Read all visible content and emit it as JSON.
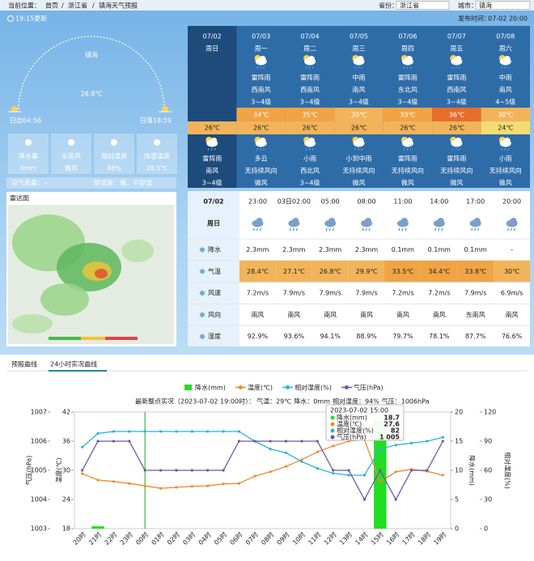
{
  "header": {
    "breadcrumb": [
      "当前位置：",
      "首页",
      "浙江省",
      "镇海天气预报"
    ],
    "province_label": "省份：",
    "province": "浙江省",
    "city_label": "城市：",
    "city": "镇海",
    "update_time": "19:15更新",
    "publish_label": "发布时间：",
    "publish_time": "07-02 20:00"
  },
  "current": {
    "city": "镇海",
    "temperature": "28.8℃",
    "sunrise": "日出04:56",
    "sunset": "日落18:59",
    "stats": [
      {
        "label": "降水量",
        "value": "0mm"
      },
      {
        "label": "东南风",
        "value": "微风"
      },
      {
        "label": "相对湿度",
        "value": "88%"
      },
      {
        "label": "体感温度",
        "value": "28.5℃"
      }
    ],
    "air_quality": "空气质量：-",
    "comfort": "舒适度：暖，不舒适"
  },
  "radar": {
    "title": "雷达图"
  },
  "forecast": {
    "days": [
      {
        "date": "07/02",
        "weekday": "周日",
        "low": "26℃",
        "night_weather": "雷阵雨",
        "night_wind_dir": "南风",
        "night_wind_level": "3~4级"
      },
      {
        "date": "07/03",
        "weekday": "周一",
        "day_weather": "雷阵雨",
        "day_wind_dir": "西南风",
        "day_wind_level": "3~4级",
        "high": "34℃",
        "low": "26℃",
        "night_weather": "多云",
        "night_wind_dir": "无持续风向",
        "night_wind_level": "微风"
      },
      {
        "date": "07/04",
        "weekday": "周二",
        "day_weather": "雷阵雨",
        "day_wind_dir": "西南风",
        "day_wind_level": "3~4级",
        "high": "35℃",
        "low": "26℃",
        "night_weather": "小雨",
        "night_wind_dir": "西北风",
        "night_wind_level": "3~4级"
      },
      {
        "date": "07/05",
        "weekday": "周三",
        "day_weather": "中雨",
        "day_wind_dir": "南风",
        "day_wind_level": "3~4级",
        "high": "30℃",
        "low": "26℃",
        "night_weather": "小到中雨",
        "night_wind_dir": "无持续风向",
        "night_wind_level": "微风"
      },
      {
        "date": "07/06",
        "weekday": "周四",
        "day_weather": "雷阵雨",
        "day_wind_dir": "东北风",
        "day_wind_level": "3~4级",
        "high": "33℃",
        "low": "26℃",
        "night_weather": "雷阵雨",
        "night_wind_dir": "无持续风向",
        "night_wind_level": "微风"
      },
      {
        "date": "07/07",
        "weekday": "周五",
        "day_weather": "雷阵雨",
        "day_wind_dir": "西南风",
        "day_wind_level": "3~4级",
        "high": "36℃",
        "low": "26℃",
        "night_weather": "雷阵雨",
        "night_wind_dir": "无持续风向",
        "night_wind_level": "微风"
      },
      {
        "date": "07/08",
        "weekday": "周六",
        "day_weather": "中雨",
        "day_wind_dir": "南风",
        "day_wind_level": "4~5级",
        "high": "30℃",
        "low": "24℃",
        "night_weather": "小雨",
        "night_wind_dir": "无持续风向",
        "night_wind_level": "微风"
      }
    ]
  },
  "hourly": {
    "date": "07/02",
    "weekday": "周日",
    "times": [
      "23:00",
      "03日02:00",
      "05:00",
      "08:00",
      "11:00",
      "14:00",
      "17:00",
      "20:00"
    ],
    "rows": [
      {
        "label": "降水",
        "values": [
          "2.3mm",
          "2.3mm",
          "2.3mm",
          "2.3mm",
          "0.1mm",
          "0.1mm",
          "0.1mm",
          "-"
        ]
      },
      {
        "label": "气温",
        "values": [
          "28.4℃",
          "27.1℃",
          "26.8℃",
          "29.9℃",
          "33.5℃",
          "34.4℃",
          "33.8℃",
          "30℃"
        ]
      },
      {
        "label": "风速",
        "values": [
          "7.2m/s",
          "7.9m/s",
          "7.9m/s",
          "7.9m/s",
          "7.2m/s",
          "7.2m/s",
          "7.9m/s",
          "6.9m/s"
        ]
      },
      {
        "label": "风向",
        "values": [
          "南风",
          "南风",
          "南风",
          "南风",
          "南风",
          "南风",
          "东南风",
          "南风"
        ]
      },
      {
        "label": "湿度",
        "values": [
          "92.9%",
          "93.6%",
          "94.1%",
          "88.9%",
          "79.7%",
          "78.1%",
          "87.7%",
          "76.6%"
        ]
      }
    ]
  },
  "tabs": [
    "预报曲线",
    "24小时实况曲线"
  ],
  "chart_data": {
    "type": "combo",
    "subtitle_prefix": "最新整点实况（2023-07-02 19:00时）：",
    "subtitle_parts": [
      {
        "text": "气温：29℃",
        "color": "#e8503a"
      },
      {
        "text": "降水：0mm",
        "color": "#1a8fd6"
      },
      {
        "text": "相对湿度：94%",
        "color": "#e8503a"
      },
      {
        "text": "气压：1006hPa",
        "color": "#1a8fd6"
      }
    ],
    "categories": [
      "20时",
      "21时",
      "22时",
      "23时",
      "00时",
      "01时",
      "02时",
      "03时",
      "04时",
      "05时",
      "06时",
      "07时",
      "08时",
      "09时",
      "10时",
      "11时",
      "12时",
      "13时",
      "14时",
      "15时",
      "16时",
      "17时",
      "18时",
      "19时"
    ],
    "axes": [
      {
        "label": "气压(hPa)",
        "lim": [
          1003,
          1007
        ],
        "ticks": [
          1003,
          1004,
          1005,
          1006,
          1007
        ]
      },
      {
        "label": "温度(℃)",
        "lim": [
          18,
          42
        ],
        "ticks": [
          18,
          24,
          30,
          36,
          42
        ]
      },
      {
        "label": "降水(mm)",
        "lim": [
          0,
          20
        ],
        "ticks": [
          0,
          5,
          10,
          15,
          20
        ]
      },
      {
        "label": "相对湿度(%)",
        "lim": [
          0,
          120
        ],
        "ticks": [
          0,
          30,
          60,
          90,
          120
        ]
      }
    ],
    "series": [
      {
        "name": "降水(mm)",
        "color": "#22dd22",
        "type": "bar",
        "axis": 2,
        "values": [
          0,
          0.4,
          0,
          0,
          0,
          0,
          0,
          0,
          0,
          0,
          0,
          0,
          0,
          0,
          0,
          0,
          0,
          0,
          0,
          18.7,
          0,
          0,
          0,
          0
        ]
      },
      {
        "name": "温度(℃)",
        "color": "#ee8a2e",
        "type": "line",
        "axis": 1,
        "values": [
          29.3,
          28,
          27.7,
          27.3,
          26.8,
          26.3,
          26.5,
          26.7,
          26.8,
          27.2,
          27.3,
          28.8,
          29.7,
          30.8,
          32.2,
          33.8,
          35,
          36,
          36.3,
          27.6,
          29.7,
          30.2,
          29.8,
          29
        ]
      },
      {
        "name": "相对湿度(%)",
        "color": "#2ab2dc",
        "type": "line",
        "axis": 3,
        "values": [
          84,
          98,
          100,
          100,
          100,
          100,
          100,
          100,
          100,
          100,
          100,
          90,
          82,
          78,
          69,
          62,
          57,
          55,
          55,
          82,
          86,
          88,
          90,
          94
        ]
      },
      {
        "name": "气压(hPa)",
        "color": "#6a58a8",
        "type": "line",
        "axis": 0,
        "values": [
          1005,
          1006,
          1006,
          1006,
          1005,
          1005,
          1005,
          1005,
          1005,
          1005,
          1006,
          1006,
          1006,
          1006,
          1006,
          1006,
          1005,
          1005,
          1004,
          1005,
          1004,
          1005,
          1005,
          1006
        ]
      }
    ],
    "tooltip": {
      "title": "2023-07-02 15:00",
      "values": [
        18.7,
        27.6,
        82,
        {
          "value": 1005,
          "label": "1 005"
        }
      ]
    }
  }
}
